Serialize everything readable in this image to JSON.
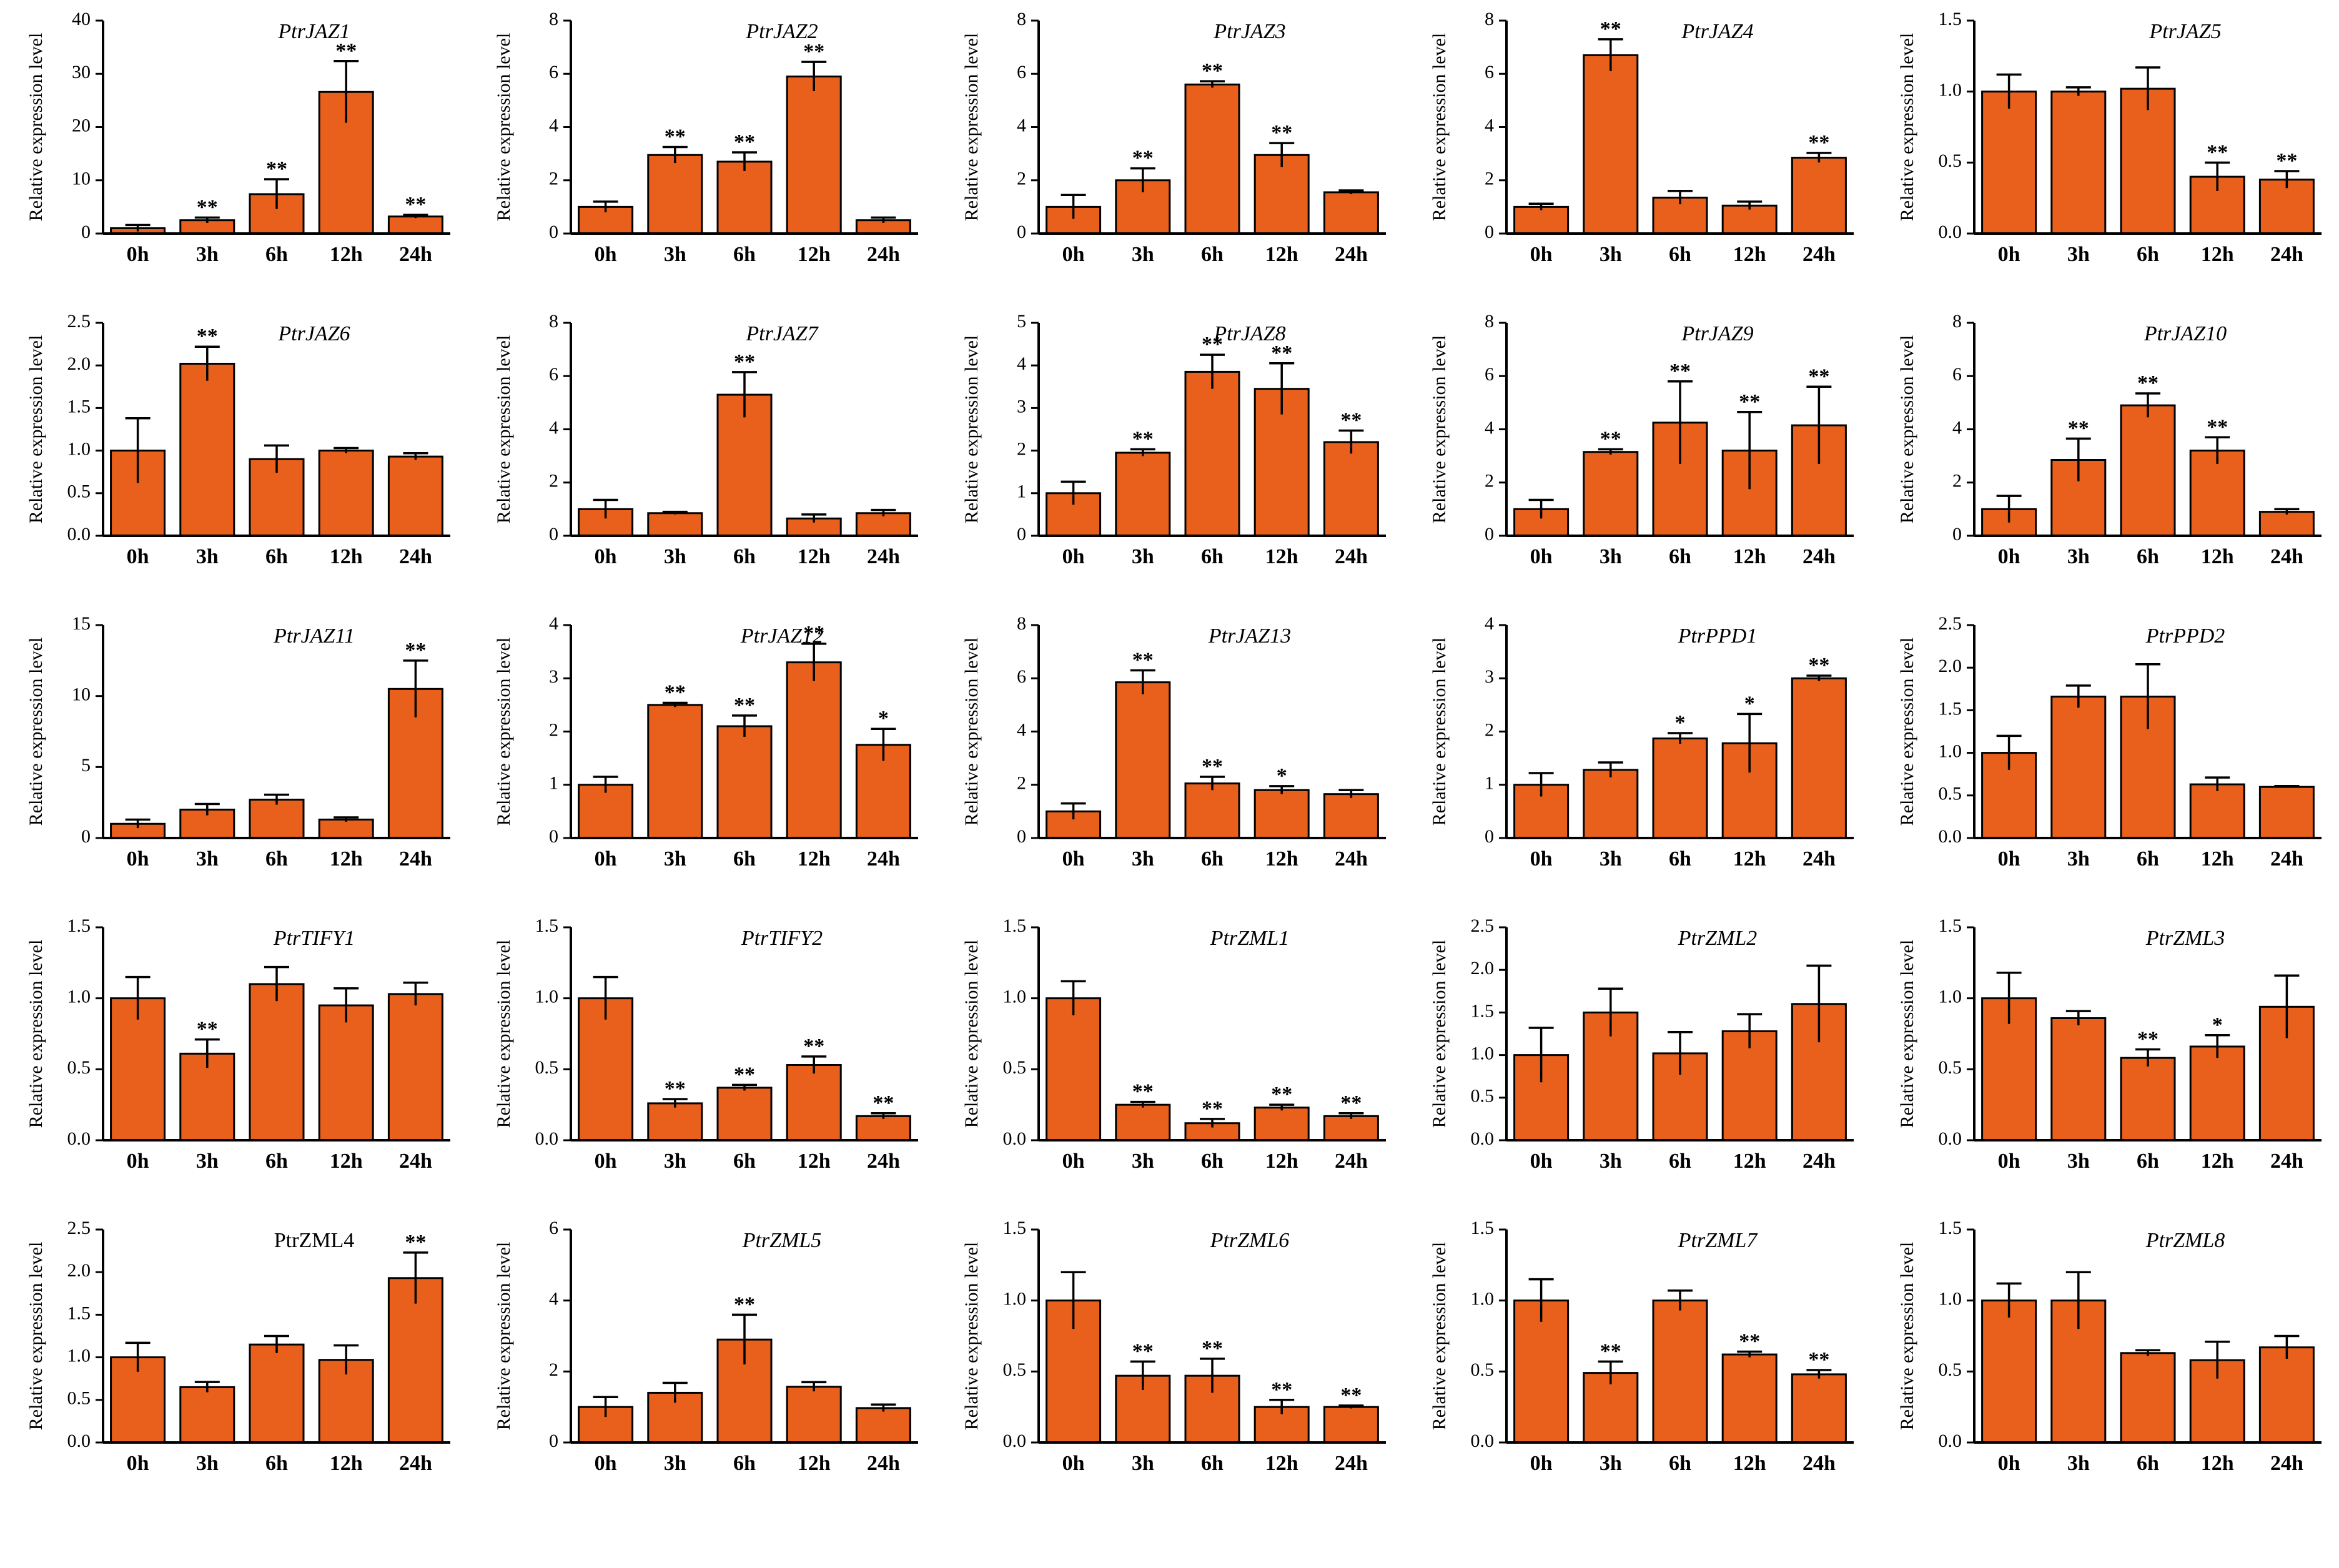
{
  "figure": {
    "x_label_fallback": "",
    "colors": {
      "bar": "#E8601C",
      "axis": "#000000"
    }
  },
  "chart_data": [
    {
      "type": "bar",
      "title": "PtrJAZ1",
      "italic": true,
      "ylabel": "Relative expression level",
      "categories": [
        "0h",
        "3h",
        "6h",
        "12h",
        "24h"
      ],
      "values": [
        1.0,
        2.5,
        7.4,
        26.6,
        3.2
      ],
      "errors": [
        0.6,
        0.5,
        2.8,
        5.8,
        0.3
      ],
      "signif": [
        "",
        "**",
        "**",
        "**",
        "**"
      ],
      "ylim": [
        0,
        40
      ],
      "yticks": [
        "0",
        "10",
        "20",
        "30",
        "40"
      ]
    },
    {
      "type": "bar",
      "title": "PtrJAZ2",
      "italic": true,
      "ylabel": "Relative expression level",
      "categories": [
        "0h",
        "3h",
        "6h",
        "12h",
        "24h"
      ],
      "values": [
        1.0,
        2.95,
        2.7,
        5.9,
        0.5
      ],
      "errors": [
        0.2,
        0.3,
        0.35,
        0.55,
        0.1
      ],
      "signif": [
        "",
        "**",
        "**",
        "**",
        ""
      ],
      "ylim": [
        0,
        8
      ],
      "yticks": [
        "0",
        "2",
        "4",
        "6",
        "8"
      ]
    },
    {
      "type": "bar",
      "title": "PtrJAZ3",
      "italic": true,
      "ylabel": "Relative expression level",
      "categories": [
        "0h",
        "3h",
        "6h",
        "12h",
        "24h"
      ],
      "values": [
        1.0,
        2.0,
        5.6,
        2.95,
        1.55
      ],
      "errors": [
        0.45,
        0.45,
        0.12,
        0.45,
        0.07
      ],
      "signif": [
        "",
        "**",
        "**",
        "**",
        ""
      ],
      "ylim": [
        0,
        8
      ],
      "yticks": [
        "0",
        "2",
        "4",
        "6",
        "8"
      ]
    },
    {
      "type": "bar",
      "title": "PtrJAZ4",
      "italic": true,
      "ylabel": "Relative expression level",
      "categories": [
        "0h",
        "3h",
        "6h",
        "12h",
        "24h"
      ],
      "values": [
        1.0,
        6.7,
        1.35,
        1.05,
        2.85
      ],
      "errors": [
        0.12,
        0.6,
        0.25,
        0.15,
        0.18
      ],
      "signif": [
        "",
        "**",
        "",
        "",
        "**"
      ],
      "ylim": [
        0,
        8
      ],
      "yticks": [
        "0",
        "2",
        "4",
        "6",
        "8"
      ]
    },
    {
      "type": "bar",
      "title": "PtrJAZ5",
      "italic": true,
      "ylabel": "Relative expression level",
      "categories": [
        "0h",
        "3h",
        "6h",
        "12h",
        "24h"
      ],
      "values": [
        1.0,
        1.0,
        1.02,
        0.4,
        0.38
      ],
      "errors": [
        0.12,
        0.03,
        0.15,
        0.1,
        0.06
      ],
      "signif": [
        "",
        "",
        "",
        "**",
        "**"
      ],
      "ylim": [
        0,
        1.5
      ],
      "yticks": [
        "0.0",
        "0.5",
        "1.0",
        "1.5"
      ]
    },
    {
      "type": "bar",
      "title": "PtrJAZ6",
      "italic": true,
      "ylabel": "Relative expression level",
      "categories": [
        "0h",
        "3h",
        "6h",
        "12h",
        "24h"
      ],
      "values": [
        1.0,
        2.02,
        0.9,
        1.0,
        0.93
      ],
      "errors": [
        0.38,
        0.2,
        0.16,
        0.03,
        0.04
      ],
      "signif": [
        "",
        "**",
        "",
        "",
        ""
      ],
      "ylim": [
        0,
        2.5
      ],
      "yticks": [
        "0.0",
        "0.5",
        "1.0",
        "1.5",
        "2.0",
        "2.5"
      ]
    },
    {
      "type": "bar",
      "title": "PtrJAZ7",
      "italic": true,
      "ylabel": "Relative expression level",
      "categories": [
        "0h",
        "3h",
        "6h",
        "12h",
        "24h"
      ],
      "values": [
        1.0,
        0.85,
        5.3,
        0.65,
        0.85
      ],
      "errors": [
        0.35,
        0.05,
        0.85,
        0.15,
        0.12
      ],
      "signif": [
        "",
        "",
        "**",
        "",
        ""
      ],
      "ylim": [
        0,
        8
      ],
      "yticks": [
        "0",
        "2",
        "4",
        "6",
        "8"
      ]
    },
    {
      "type": "bar",
      "title": "PtrJAZ8",
      "italic": true,
      "ylabel": "Relative expression level",
      "categories": [
        "0h",
        "3h",
        "6h",
        "12h",
        "24h"
      ],
      "values": [
        1.0,
        1.95,
        3.85,
        3.45,
        2.2
      ],
      "errors": [
        0.27,
        0.08,
        0.4,
        0.6,
        0.27
      ],
      "signif": [
        "",
        "**",
        "**",
        "**",
        "**"
      ],
      "ylim": [
        0,
        5
      ],
      "yticks": [
        "0",
        "1",
        "2",
        "3",
        "4",
        "5"
      ]
    },
    {
      "type": "bar",
      "title": "PtrJAZ9",
      "italic": true,
      "ylabel": "Relative expression level",
      "categories": [
        "0h",
        "3h",
        "6h",
        "12h",
        "24h"
      ],
      "values": [
        1.0,
        3.15,
        4.25,
        3.2,
        4.15
      ],
      "errors": [
        0.35,
        0.1,
        1.55,
        1.45,
        1.45
      ],
      "signif": [
        "",
        "**",
        "**",
        "**",
        "**"
      ],
      "ylim": [
        0,
        8
      ],
      "yticks": [
        "0",
        "2",
        "4",
        "6",
        "8"
      ]
    },
    {
      "type": "bar",
      "title": "PtrJAZ10",
      "italic": true,
      "ylabel": "Relative expression level",
      "categories": [
        "0h",
        "3h",
        "6h",
        "12h",
        "24h"
      ],
      "values": [
        1.0,
        2.85,
        4.9,
        3.2,
        0.9
      ],
      "errors": [
        0.5,
        0.8,
        0.45,
        0.5,
        0.1
      ],
      "signif": [
        "",
        "**",
        "**",
        "**",
        ""
      ],
      "ylim": [
        0,
        8
      ],
      "yticks": [
        "0",
        "2",
        "4",
        "6",
        "8"
      ]
    },
    {
      "type": "bar",
      "title": "PtrJAZ11",
      "italic": true,
      "ylabel": "Relative expression level",
      "categories": [
        "0h",
        "3h",
        "6h",
        "12h",
        "24h"
      ],
      "values": [
        1.0,
        2.0,
        2.7,
        1.3,
        10.5
      ],
      "errors": [
        0.3,
        0.4,
        0.35,
        0.15,
        2.0
      ],
      "signif": [
        "",
        "",
        "",
        "",
        "**"
      ],
      "ylim": [
        0,
        15
      ],
      "yticks": [
        "0",
        "5",
        "10",
        "15"
      ]
    },
    {
      "type": "bar",
      "title": "PtrJAZ12",
      "italic": true,
      "ylabel": "Relative expression level",
      "categories": [
        "0h",
        "3h",
        "6h",
        "12h",
        "24h"
      ],
      "values": [
        1.0,
        2.5,
        2.1,
        3.3,
        1.75
      ],
      "errors": [
        0.15,
        0.04,
        0.2,
        0.35,
        0.3
      ],
      "signif": [
        "",
        "**",
        "**",
        "**",
        "*"
      ],
      "ylim": [
        0,
        4
      ],
      "yticks": [
        "0",
        "1",
        "2",
        "3",
        "4"
      ]
    },
    {
      "type": "bar",
      "title": "PtrJAZ13",
      "italic": true,
      "ylabel": "Relative expression level",
      "categories": [
        "0h",
        "3h",
        "6h",
        "12h",
        "24h"
      ],
      "values": [
        1.0,
        5.85,
        2.05,
        1.8,
        1.65
      ],
      "errors": [
        0.3,
        0.45,
        0.25,
        0.15,
        0.15
      ],
      "signif": [
        "",
        "**",
        "**",
        "*",
        ""
      ],
      "ylim": [
        0,
        8
      ],
      "yticks": [
        "0",
        "2",
        "4",
        "6",
        "8"
      ]
    },
    {
      "type": "bar",
      "title": "PtrPPD1",
      "italic": true,
      "ylabel": "Relative expression level",
      "categories": [
        "0h",
        "3h",
        "6h",
        "12h",
        "24h"
      ],
      "values": [
        1.0,
        1.28,
        1.87,
        1.78,
        3.0
      ],
      "errors": [
        0.22,
        0.14,
        0.1,
        0.55,
        0.05
      ],
      "signif": [
        "",
        "",
        "*",
        "*",
        "**"
      ],
      "ylim": [
        0,
        4
      ],
      "yticks": [
        "0",
        "1",
        "2",
        "3",
        "4"
      ]
    },
    {
      "type": "bar",
      "title": "PtrPPD2",
      "italic": true,
      "ylabel": "Relative expression level",
      "categories": [
        "0h",
        "3h",
        "6h",
        "12h",
        "24h"
      ],
      "values": [
        1.0,
        1.66,
        1.66,
        0.63,
        0.6
      ],
      "errors": [
        0.2,
        0.13,
        0.38,
        0.08,
        0.01
      ],
      "signif": [
        "",
        "",
        "",
        "",
        ""
      ],
      "ylim": [
        0,
        2.5
      ],
      "yticks": [
        "0.0",
        "0.5",
        "1.0",
        "1.5",
        "2.0",
        "2.5"
      ]
    },
    {
      "type": "bar",
      "title": "PtrTIFY1",
      "italic": true,
      "ylabel": "Relative expression level",
      "categories": [
        "0h",
        "3h",
        "6h",
        "12h",
        "24h"
      ],
      "values": [
        1.0,
        0.61,
        1.1,
        0.95,
        1.03
      ],
      "errors": [
        0.15,
        0.1,
        0.12,
        0.12,
        0.08
      ],
      "signif": [
        "",
        "**",
        "",
        "",
        ""
      ],
      "ylim": [
        0,
        1.5
      ],
      "yticks": [
        "0.0",
        "0.5",
        "1.0",
        "1.5"
      ]
    },
    {
      "type": "bar",
      "title": "PtrTIFY2",
      "italic": true,
      "ylabel": "Relative expression level",
      "categories": [
        "0h",
        "3h",
        "6h",
        "12h",
        "24h"
      ],
      "values": [
        1.0,
        0.26,
        0.37,
        0.53,
        0.17
      ],
      "errors": [
        0.15,
        0.03,
        0.02,
        0.06,
        0.02
      ],
      "signif": [
        "",
        "**",
        "**",
        "**",
        "**"
      ],
      "ylim": [
        0,
        1.5
      ],
      "yticks": [
        "0.0",
        "0.5",
        "1.0",
        "1.5"
      ]
    },
    {
      "type": "bar",
      "title": "PtrZML1",
      "italic": true,
      "ylabel": "Relative expression level",
      "categories": [
        "0h",
        "3h",
        "6h",
        "12h",
        "24h"
      ],
      "values": [
        1.0,
        0.25,
        0.12,
        0.23,
        0.17
      ],
      "errors": [
        0.12,
        0.02,
        0.03,
        0.02,
        0.02
      ],
      "signif": [
        "",
        "**",
        "**",
        "**",
        "**"
      ],
      "ylim": [
        0,
        1.5
      ],
      "yticks": [
        "0.0",
        "0.5",
        "1.0",
        "1.5"
      ]
    },
    {
      "type": "bar",
      "title": "PtrZML2",
      "italic": true,
      "ylabel": "Relative expression level",
      "categories": [
        "0h",
        "3h",
        "6h",
        "12h",
        "24h"
      ],
      "values": [
        1.0,
        1.5,
        1.02,
        1.28,
        1.6
      ],
      "errors": [
        0.32,
        0.28,
        0.25,
        0.2,
        0.45
      ],
      "signif": [
        "",
        "",
        "",
        "",
        ""
      ],
      "ylim": [
        0,
        2.5
      ],
      "yticks": [
        "0.0",
        "0.5",
        "1.0",
        "1.5",
        "2.0",
        "2.5"
      ]
    },
    {
      "type": "bar",
      "title": "PtrZML3",
      "italic": true,
      "ylabel": "Relative expression level",
      "categories": [
        "0h",
        "3h",
        "6h",
        "12h",
        "24h"
      ],
      "values": [
        1.0,
        0.86,
        0.58,
        0.66,
        0.94
      ],
      "errors": [
        0.18,
        0.05,
        0.06,
        0.08,
        0.22
      ],
      "signif": [
        "",
        "",
        "**",
        "*",
        ""
      ],
      "ylim": [
        0,
        1.5
      ],
      "yticks": [
        "0.0",
        "0.5",
        "1.0",
        "1.5"
      ]
    },
    {
      "type": "bar",
      "title": "PtrZML4",
      "italic": false,
      "ylabel": "Relative expression level",
      "categories": [
        "0h",
        "3h",
        "6h",
        "12h",
        "24h"
      ],
      "values": [
        1.0,
        0.65,
        1.15,
        0.97,
        1.93
      ],
      "errors": [
        0.17,
        0.06,
        0.1,
        0.17,
        0.3
      ],
      "signif": [
        "",
        "",
        "",
        "",
        "**"
      ],
      "ylim": [
        0,
        2.5
      ],
      "yticks": [
        "0.0",
        "0.5",
        "1.0",
        "1.5",
        "2.0",
        "2.5"
      ]
    },
    {
      "type": "bar",
      "title": "PtrZML5",
      "italic": true,
      "ylabel": "Relative expression level",
      "categories": [
        "0h",
        "3h",
        "6h",
        "12h",
        "24h"
      ],
      "values": [
        1.0,
        1.4,
        2.9,
        1.57,
        0.97
      ],
      "errors": [
        0.28,
        0.28,
        0.7,
        0.13,
        0.1
      ],
      "signif": [
        "",
        "",
        "**",
        "",
        ""
      ],
      "ylim": [
        0,
        6
      ],
      "yticks": [
        "0",
        "2",
        "4",
        "6"
      ]
    },
    {
      "type": "bar",
      "title": "PtrZML6",
      "italic": true,
      "ylabel": "Relative expression level",
      "categories": [
        "0h",
        "3h",
        "6h",
        "12h",
        "24h"
      ],
      "values": [
        1.0,
        0.47,
        0.47,
        0.25,
        0.25
      ],
      "errors": [
        0.2,
        0.1,
        0.12,
        0.05,
        0.01
      ],
      "signif": [
        "",
        "**",
        "**",
        "**",
        "**"
      ],
      "ylim": [
        0,
        1.5
      ],
      "yticks": [
        "0.0",
        "0.5",
        "1.0",
        "1.5"
      ]
    },
    {
      "type": "bar",
      "title": "PtrZML7",
      "italic": true,
      "ylabel": "Relative expression level",
      "categories": [
        "0h",
        "3h",
        "6h",
        "12h",
        "24h"
      ],
      "values": [
        1.0,
        0.49,
        1.0,
        0.62,
        0.48
      ],
      "errors": [
        0.15,
        0.08,
        0.07,
        0.02,
        0.03
      ],
      "signif": [
        "",
        "**",
        "",
        "**",
        "**"
      ],
      "ylim": [
        0,
        1.5
      ],
      "yticks": [
        "0.0",
        "0.5",
        "1.0",
        "1.5"
      ]
    },
    {
      "type": "bar",
      "title": "PtrZML8",
      "italic": true,
      "ylabel": "Relative expression level",
      "categories": [
        "0h",
        "3h",
        "6h",
        "12h",
        "24h"
      ],
      "values": [
        1.0,
        1.0,
        0.63,
        0.58,
        0.67
      ],
      "errors": [
        0.12,
        0.2,
        0.02,
        0.13,
        0.08
      ],
      "signif": [
        "",
        "",
        "",
        "",
        ""
      ],
      "ylim": [
        0,
        1.5
      ],
      "yticks": [
        "0.0",
        "0.5",
        "1.0",
        "1.5"
      ]
    }
  ]
}
